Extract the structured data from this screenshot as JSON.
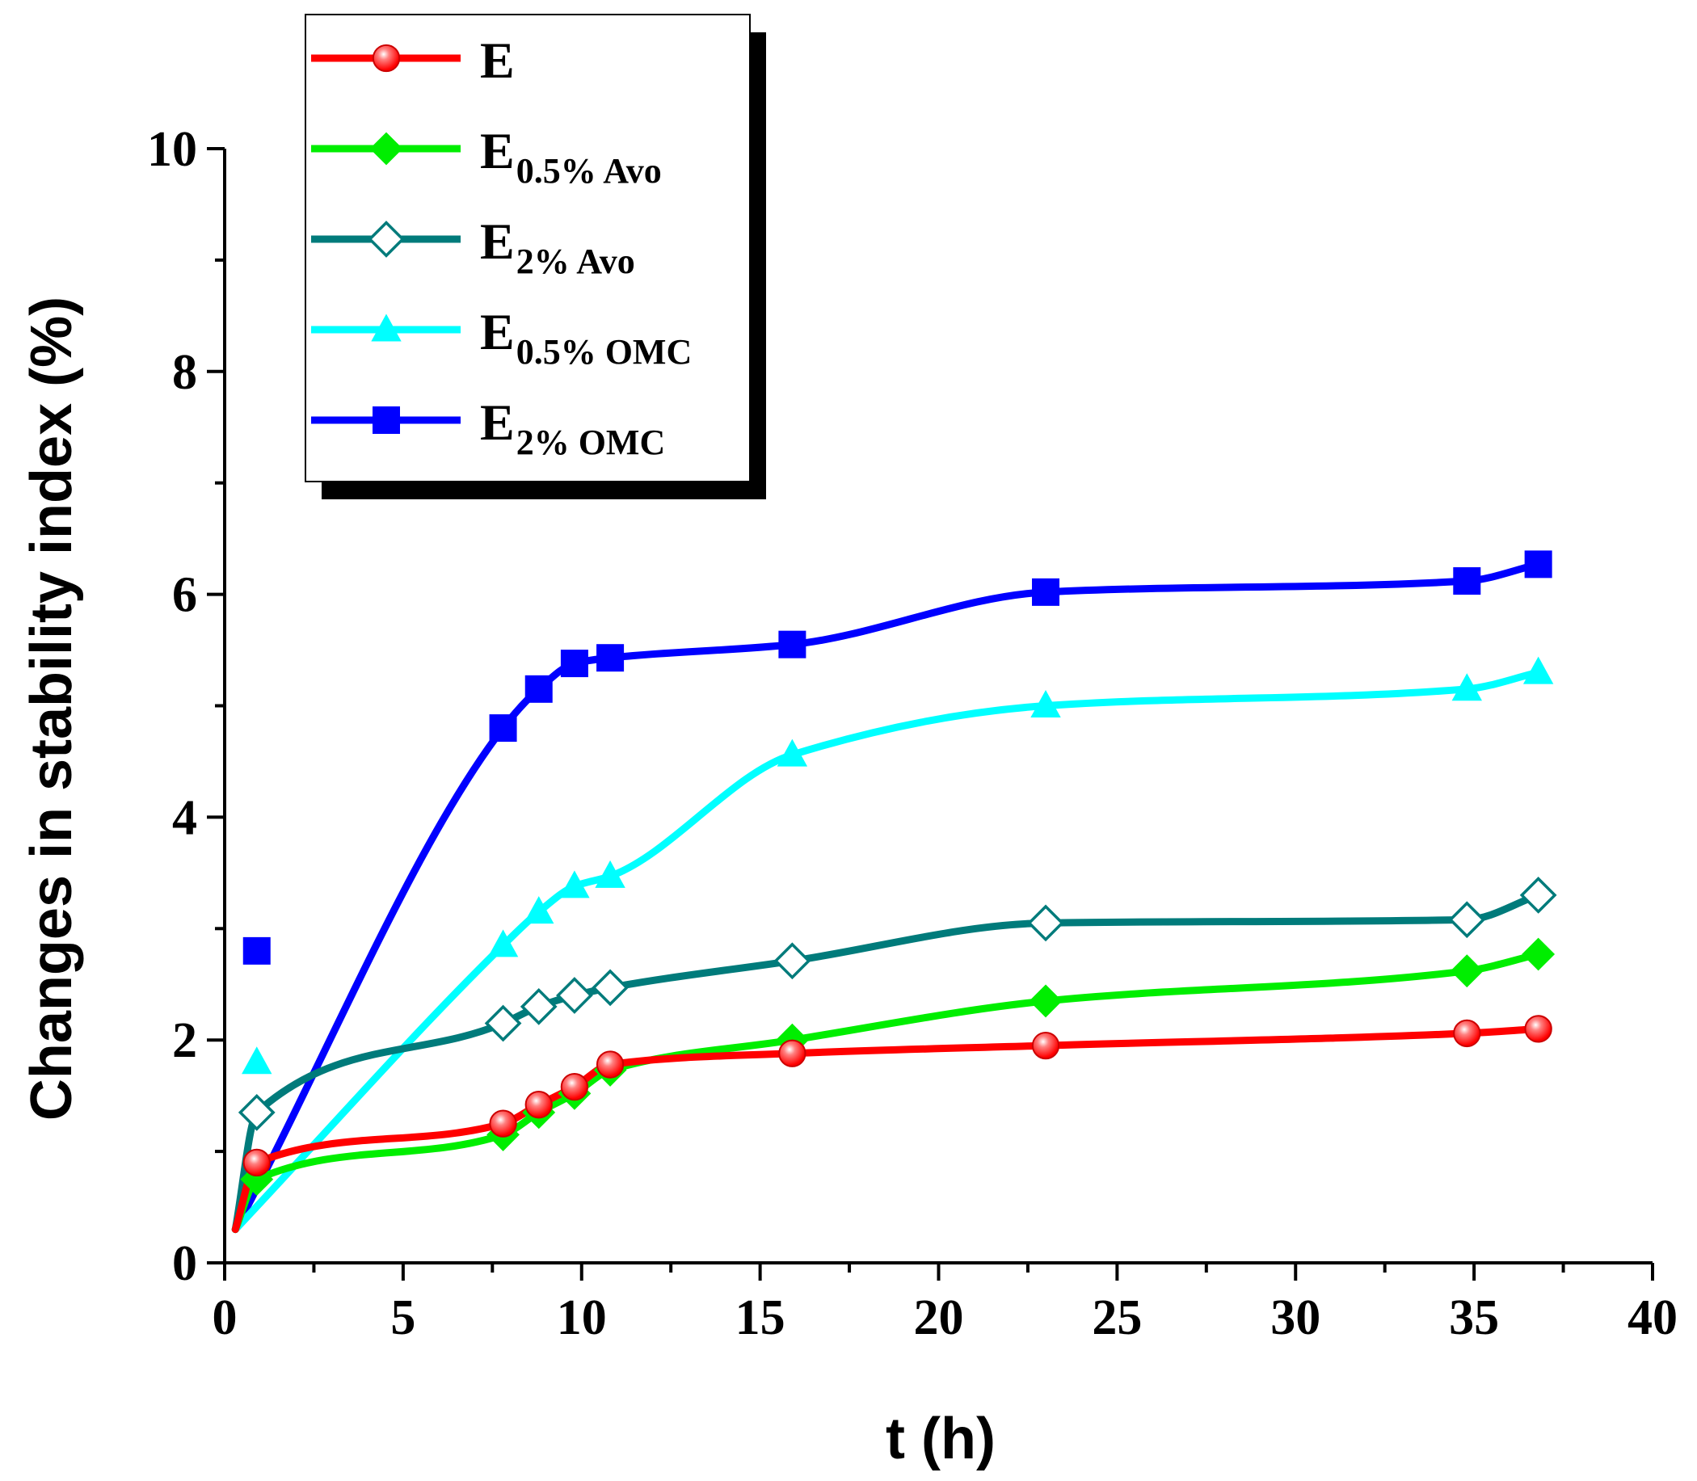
{
  "chart_data": {
    "type": "line",
    "title": "",
    "xlabel": "t (h)",
    "ylabel": "Changes in stability index (%)",
    "xlim": [
      0,
      40
    ],
    "ylim": [
      0,
      10
    ],
    "xticks": [
      "0",
      "5",
      "10",
      "15",
      "20",
      "25",
      "30",
      "35",
      "40"
    ],
    "yticks": [
      "0",
      "2",
      "4",
      "6",
      "8",
      "10"
    ],
    "legend_position": "top-left",
    "series": [
      {
        "name": "E",
        "base": "E",
        "subscript": "",
        "color": "#ff0000",
        "marker": "circle",
        "x": [
          0.3,
          0.9,
          7.8,
          8.8,
          9.8,
          10.8,
          15.9,
          23.0,
          34.8,
          36.8
        ],
        "y": [
          0.3,
          0.9,
          1.25,
          1.42,
          1.58,
          1.78,
          1.88,
          1.95,
          2.06,
          2.1
        ]
      },
      {
        "name": "E0.5% Avo",
        "base": "E",
        "subscript": "0.5% Avo",
        "color": "#00ee00",
        "marker": "diamond",
        "x": [
          0.3,
          0.9,
          7.8,
          8.8,
          9.8,
          10.8,
          15.9,
          23.0,
          34.8,
          36.8
        ],
        "y": [
          0.3,
          0.75,
          1.15,
          1.35,
          1.52,
          1.73,
          2.0,
          2.35,
          2.62,
          2.77
        ]
      },
      {
        "name": "E2% Avo",
        "base": "E",
        "subscript": "2% Avo",
        "color": "#007b7b",
        "marker": "diamond-open",
        "x": [
          0.3,
          0.9,
          7.8,
          8.8,
          9.8,
          10.8,
          15.9,
          23.0,
          34.8,
          36.8
        ],
        "y": [
          0.3,
          1.35,
          2.15,
          2.3,
          2.4,
          2.47,
          2.71,
          3.05,
          3.08,
          3.3
        ]
      },
      {
        "name": "E0.5% OMC",
        "base": "E",
        "subscript": "0.5% OMC",
        "color": "#00ffff",
        "marker": "triangle",
        "x": [
          0.3,
          0.9,
          7.8,
          8.8,
          9.8,
          10.8,
          15.9,
          23.0,
          34.8,
          36.8
        ],
        "y": [
          0.3,
          1.8,
          2.85,
          3.15,
          3.38,
          3.47,
          4.56,
          5.0,
          5.15,
          5.3
        ]
      },
      {
        "name": "E2% OMC",
        "base": "E",
        "subscript": "2% OMC",
        "color": "#0000ff",
        "marker": "square",
        "x": [
          0.3,
          0.9,
          7.8,
          8.8,
          9.8,
          10.8,
          15.9,
          23.0,
          34.8,
          36.8
        ],
        "y": [
          0.3,
          2.8,
          4.8,
          5.15,
          5.38,
          5.43,
          5.55,
          6.02,
          6.12,
          6.27
        ]
      }
    ]
  }
}
